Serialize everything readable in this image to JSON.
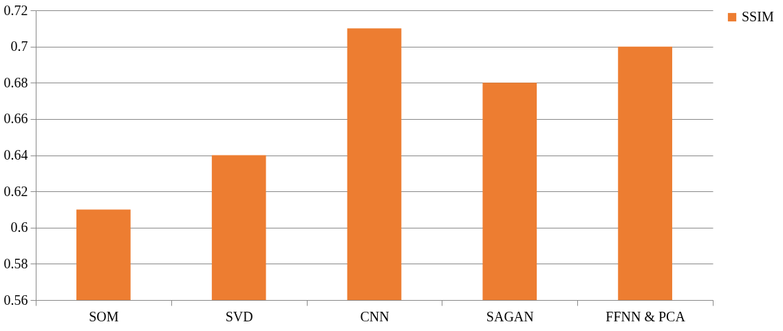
{
  "chart_data": {
    "type": "bar",
    "categories": [
      "SOM",
      "SVD",
      "CNN",
      "SAGAN",
      "FFNN & PCA"
    ],
    "series": [
      {
        "name": "SSIM",
        "color": "#ed7d31",
        "values": [
          0.61,
          0.64,
          0.71,
          0.68,
          0.7
        ]
      }
    ],
    "ylim": [
      0.56,
      0.72
    ],
    "yticks": [
      0.56,
      0.58,
      0.6,
      0.62,
      0.64,
      0.66,
      0.68,
      0.7,
      0.72
    ],
    "grid": "y",
    "legend": "right"
  }
}
